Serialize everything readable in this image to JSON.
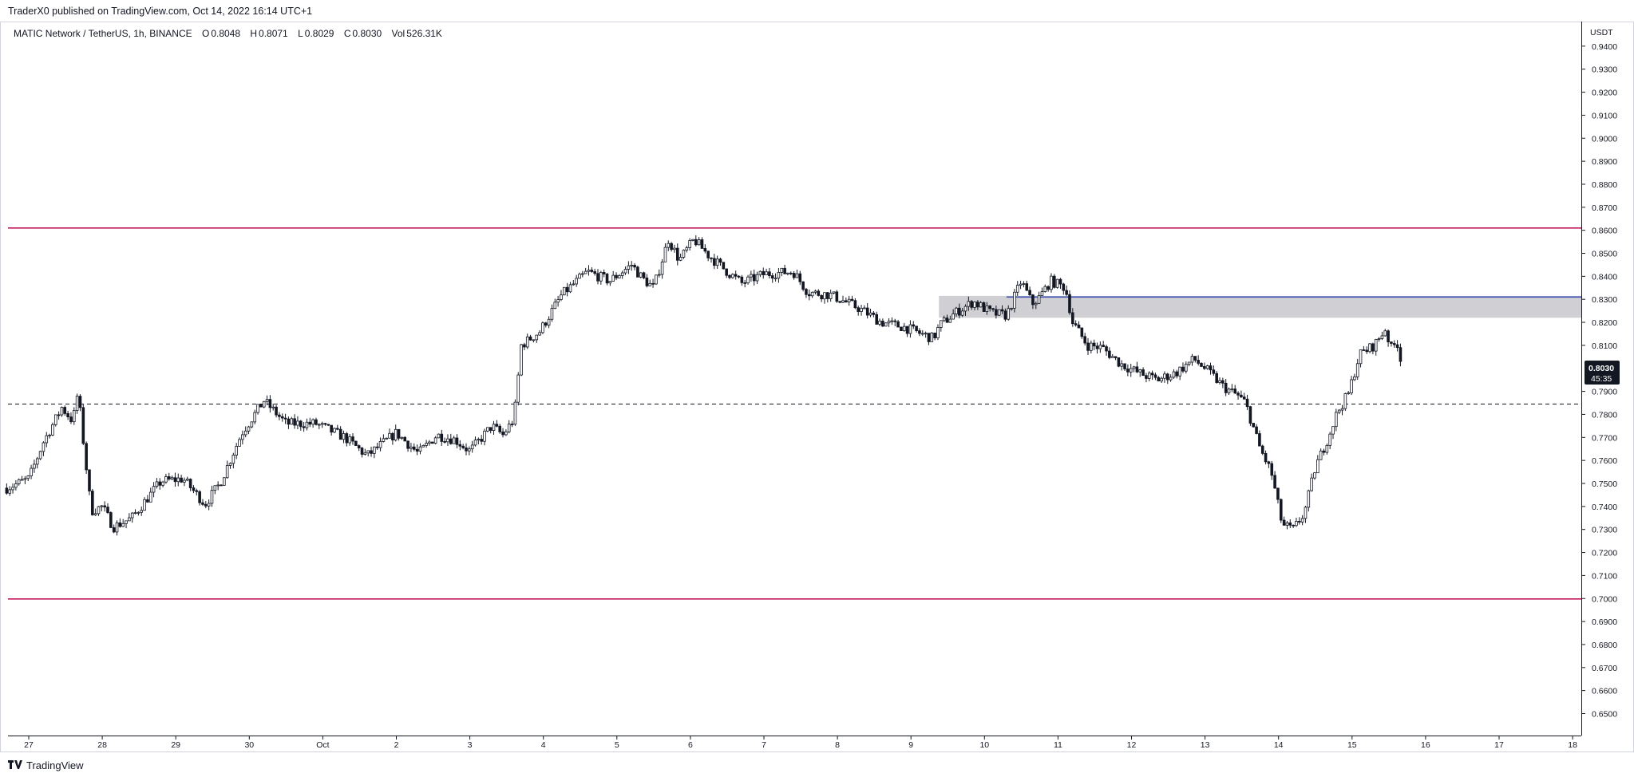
{
  "header": {
    "published": "TraderX0 published on TradingView.com, Oct 14, 2022 16:14 UTC+1"
  },
  "legend": {
    "symbol": "MATIC Network / TetherUS, 1h, BINANCE",
    "open_label": "O",
    "open": "0.8048",
    "high_label": "H",
    "high": "0.8071",
    "low_label": "L",
    "low": "0.8029",
    "close_label": "C",
    "close": "0.8030",
    "vol_label": "Vol",
    "vol": "526.31K"
  },
  "footer": {
    "brand": "TradingView",
    "logo_icon": "tradingview-logo-icon"
  },
  "chart_data": {
    "type": "candlestick",
    "currency": "USDT",
    "y_ticks": [
      "0.9400",
      "0.9300",
      "0.9200",
      "0.9100",
      "0.9000",
      "0.8900",
      "0.8800",
      "0.8700",
      "0.8600",
      "0.8500",
      "0.8400",
      "0.8300",
      "0.8200",
      "0.8100",
      "0.7900",
      "0.7800",
      "0.7700",
      "0.7600",
      "0.7500",
      "0.7400",
      "0.7300",
      "0.7200",
      "0.7100",
      "0.7000",
      "0.6900",
      "0.6800",
      "0.6700",
      "0.6600",
      "0.6500"
    ],
    "ylim": [
      0.645,
      0.95
    ],
    "x_ticks": [
      "27",
      "28",
      "29",
      "30",
      "Oct",
      "2",
      "3",
      "4",
      "5",
      "6",
      "7",
      "8",
      "9",
      "10",
      "11",
      "12",
      "13",
      "14",
      "15",
      "16",
      "17",
      "18"
    ],
    "price_label": {
      "price": "0.8030",
      "countdown": "45:35"
    },
    "horizontal_levels": [
      {
        "price": 0.861,
        "style": "solid",
        "color": "#c2185b"
      },
      {
        "price": 0.6998,
        "style": "solid",
        "color": "#c2185b"
      },
      {
        "price": 0.7845,
        "style": "dashed",
        "color": "#131722"
      },
      {
        "price": 0.831,
        "style": "solid",
        "color": "#3f51b5"
      }
    ],
    "zone": {
      "price_top": 0.8315,
      "price_bottom": 0.822,
      "start_date": "Oct 9",
      "color": "#c8c8cc"
    },
    "anchors": [
      [
        -0.3,
        0.748
      ],
      [
        0.0,
        0.752
      ],
      [
        0.2,
        0.768
      ],
      [
        0.45,
        0.783
      ],
      [
        0.6,
        0.777
      ],
      [
        0.67,
        0.79
      ],
      [
        0.75,
        0.766
      ],
      [
        0.85,
        0.738
      ],
      [
        1.0,
        0.74
      ],
      [
        1.15,
        0.731
      ],
      [
        1.4,
        0.735
      ],
      [
        1.8,
        0.751
      ],
      [
        2.1,
        0.752
      ],
      [
        2.4,
        0.741
      ],
      [
        2.6,
        0.75
      ],
      [
        2.9,
        0.772
      ],
      [
        3.2,
        0.786
      ],
      [
        3.5,
        0.776
      ],
      [
        3.9,
        0.776
      ],
      [
        4.3,
        0.77
      ],
      [
        4.6,
        0.762
      ],
      [
        5.0,
        0.772
      ],
      [
        5.3,
        0.763
      ],
      [
        5.55,
        0.771
      ],
      [
        5.8,
        0.769
      ],
      [
        6.0,
        0.764
      ],
      [
        6.3,
        0.775
      ],
      [
        6.45,
        0.771
      ],
      [
        6.6,
        0.778
      ],
      [
        6.7,
        0.81
      ],
      [
        6.95,
        0.816
      ],
      [
        7.25,
        0.832
      ],
      [
        7.6,
        0.842
      ],
      [
        7.9,
        0.838
      ],
      [
        8.2,
        0.845
      ],
      [
        8.35,
        0.839
      ],
      [
        8.5,
        0.835
      ],
      [
        8.7,
        0.856
      ],
      [
        8.85,
        0.847
      ],
      [
        9.05,
        0.856
      ],
      [
        9.25,
        0.849
      ],
      [
        9.5,
        0.842
      ],
      [
        9.7,
        0.837
      ],
      [
        10.0,
        0.841
      ],
      [
        10.4,
        0.842
      ],
      [
        10.6,
        0.833
      ],
      [
        10.9,
        0.832
      ],
      [
        11.3,
        0.826
      ],
      [
        11.6,
        0.82
      ],
      [
        11.9,
        0.818
      ],
      [
        12.3,
        0.813
      ],
      [
        12.4,
        0.819
      ],
      [
        12.6,
        0.824
      ],
      [
        12.85,
        0.829
      ],
      [
        13.1,
        0.824
      ],
      [
        13.3,
        0.823
      ],
      [
        13.5,
        0.838
      ],
      [
        13.65,
        0.828
      ],
      [
        13.75,
        0.831
      ],
      [
        13.9,
        0.838
      ],
      [
        14.1,
        0.835
      ],
      [
        14.2,
        0.82
      ],
      [
        14.4,
        0.81
      ],
      [
        14.6,
        0.809
      ],
      [
        14.85,
        0.802
      ],
      [
        15.1,
        0.798
      ],
      [
        15.35,
        0.795
      ],
      [
        15.6,
        0.798
      ],
      [
        15.85,
        0.804
      ],
      [
        16.0,
        0.8
      ],
      [
        16.25,
        0.792
      ],
      [
        16.45,
        0.788
      ],
      [
        16.55,
        0.785
      ],
      [
        16.75,
        0.765
      ],
      [
        16.9,
        0.755
      ],
      [
        17.05,
        0.732
      ],
      [
        17.2,
        0.73
      ],
      [
        17.35,
        0.737
      ],
      [
        17.5,
        0.757
      ],
      [
        17.65,
        0.768
      ],
      [
        17.8,
        0.781
      ],
      [
        17.95,
        0.789
      ],
      [
        18.1,
        0.806
      ],
      [
        18.3,
        0.81
      ],
      [
        18.45,
        0.817
      ],
      [
        18.55,
        0.807
      ],
      [
        18.6,
        0.813
      ],
      [
        18.68,
        0.803
      ]
    ]
  }
}
